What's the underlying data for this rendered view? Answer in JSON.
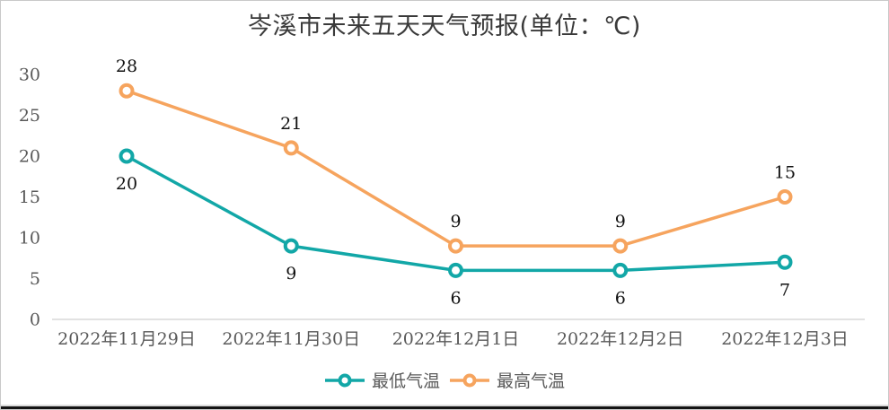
{
  "window": {
    "background": "#ffffff",
    "frame_border_color": "#c9c9c9",
    "bottom_edge_color": "#141414"
  },
  "chart_data": {
    "type": "line",
    "title": "岑溪市未来五天天气预报(单位：℃)",
    "categories": [
      "2022年11月29日",
      "2022年11月30日",
      "2022年12月1日",
      "2022年12月2日",
      "2022年12月3日"
    ],
    "series": [
      {
        "name": "最低气温",
        "values": [
          20,
          9,
          6,
          6,
          7
        ],
        "color": "#12a7a7",
        "marker": "hollow-circle",
        "label_position": "below"
      },
      {
        "name": "最高气温",
        "values": [
          28,
          21,
          9,
          9,
          15
        ],
        "color": "#f6a45e",
        "marker": "hollow-circle",
        "label_position": "above"
      }
    ],
    "xlabel": "",
    "ylabel": "",
    "ylim": [
      0,
      30
    ],
    "yticks": [
      0,
      5,
      10,
      15,
      20,
      25,
      30
    ],
    "grid": false,
    "data_labels": true,
    "legend_position": "bottom",
    "axis_text_color": "#595959",
    "data_label_color": "#111111",
    "axis_line_color": "#d9d9d9",
    "marker_fill": "#ffffff"
  }
}
